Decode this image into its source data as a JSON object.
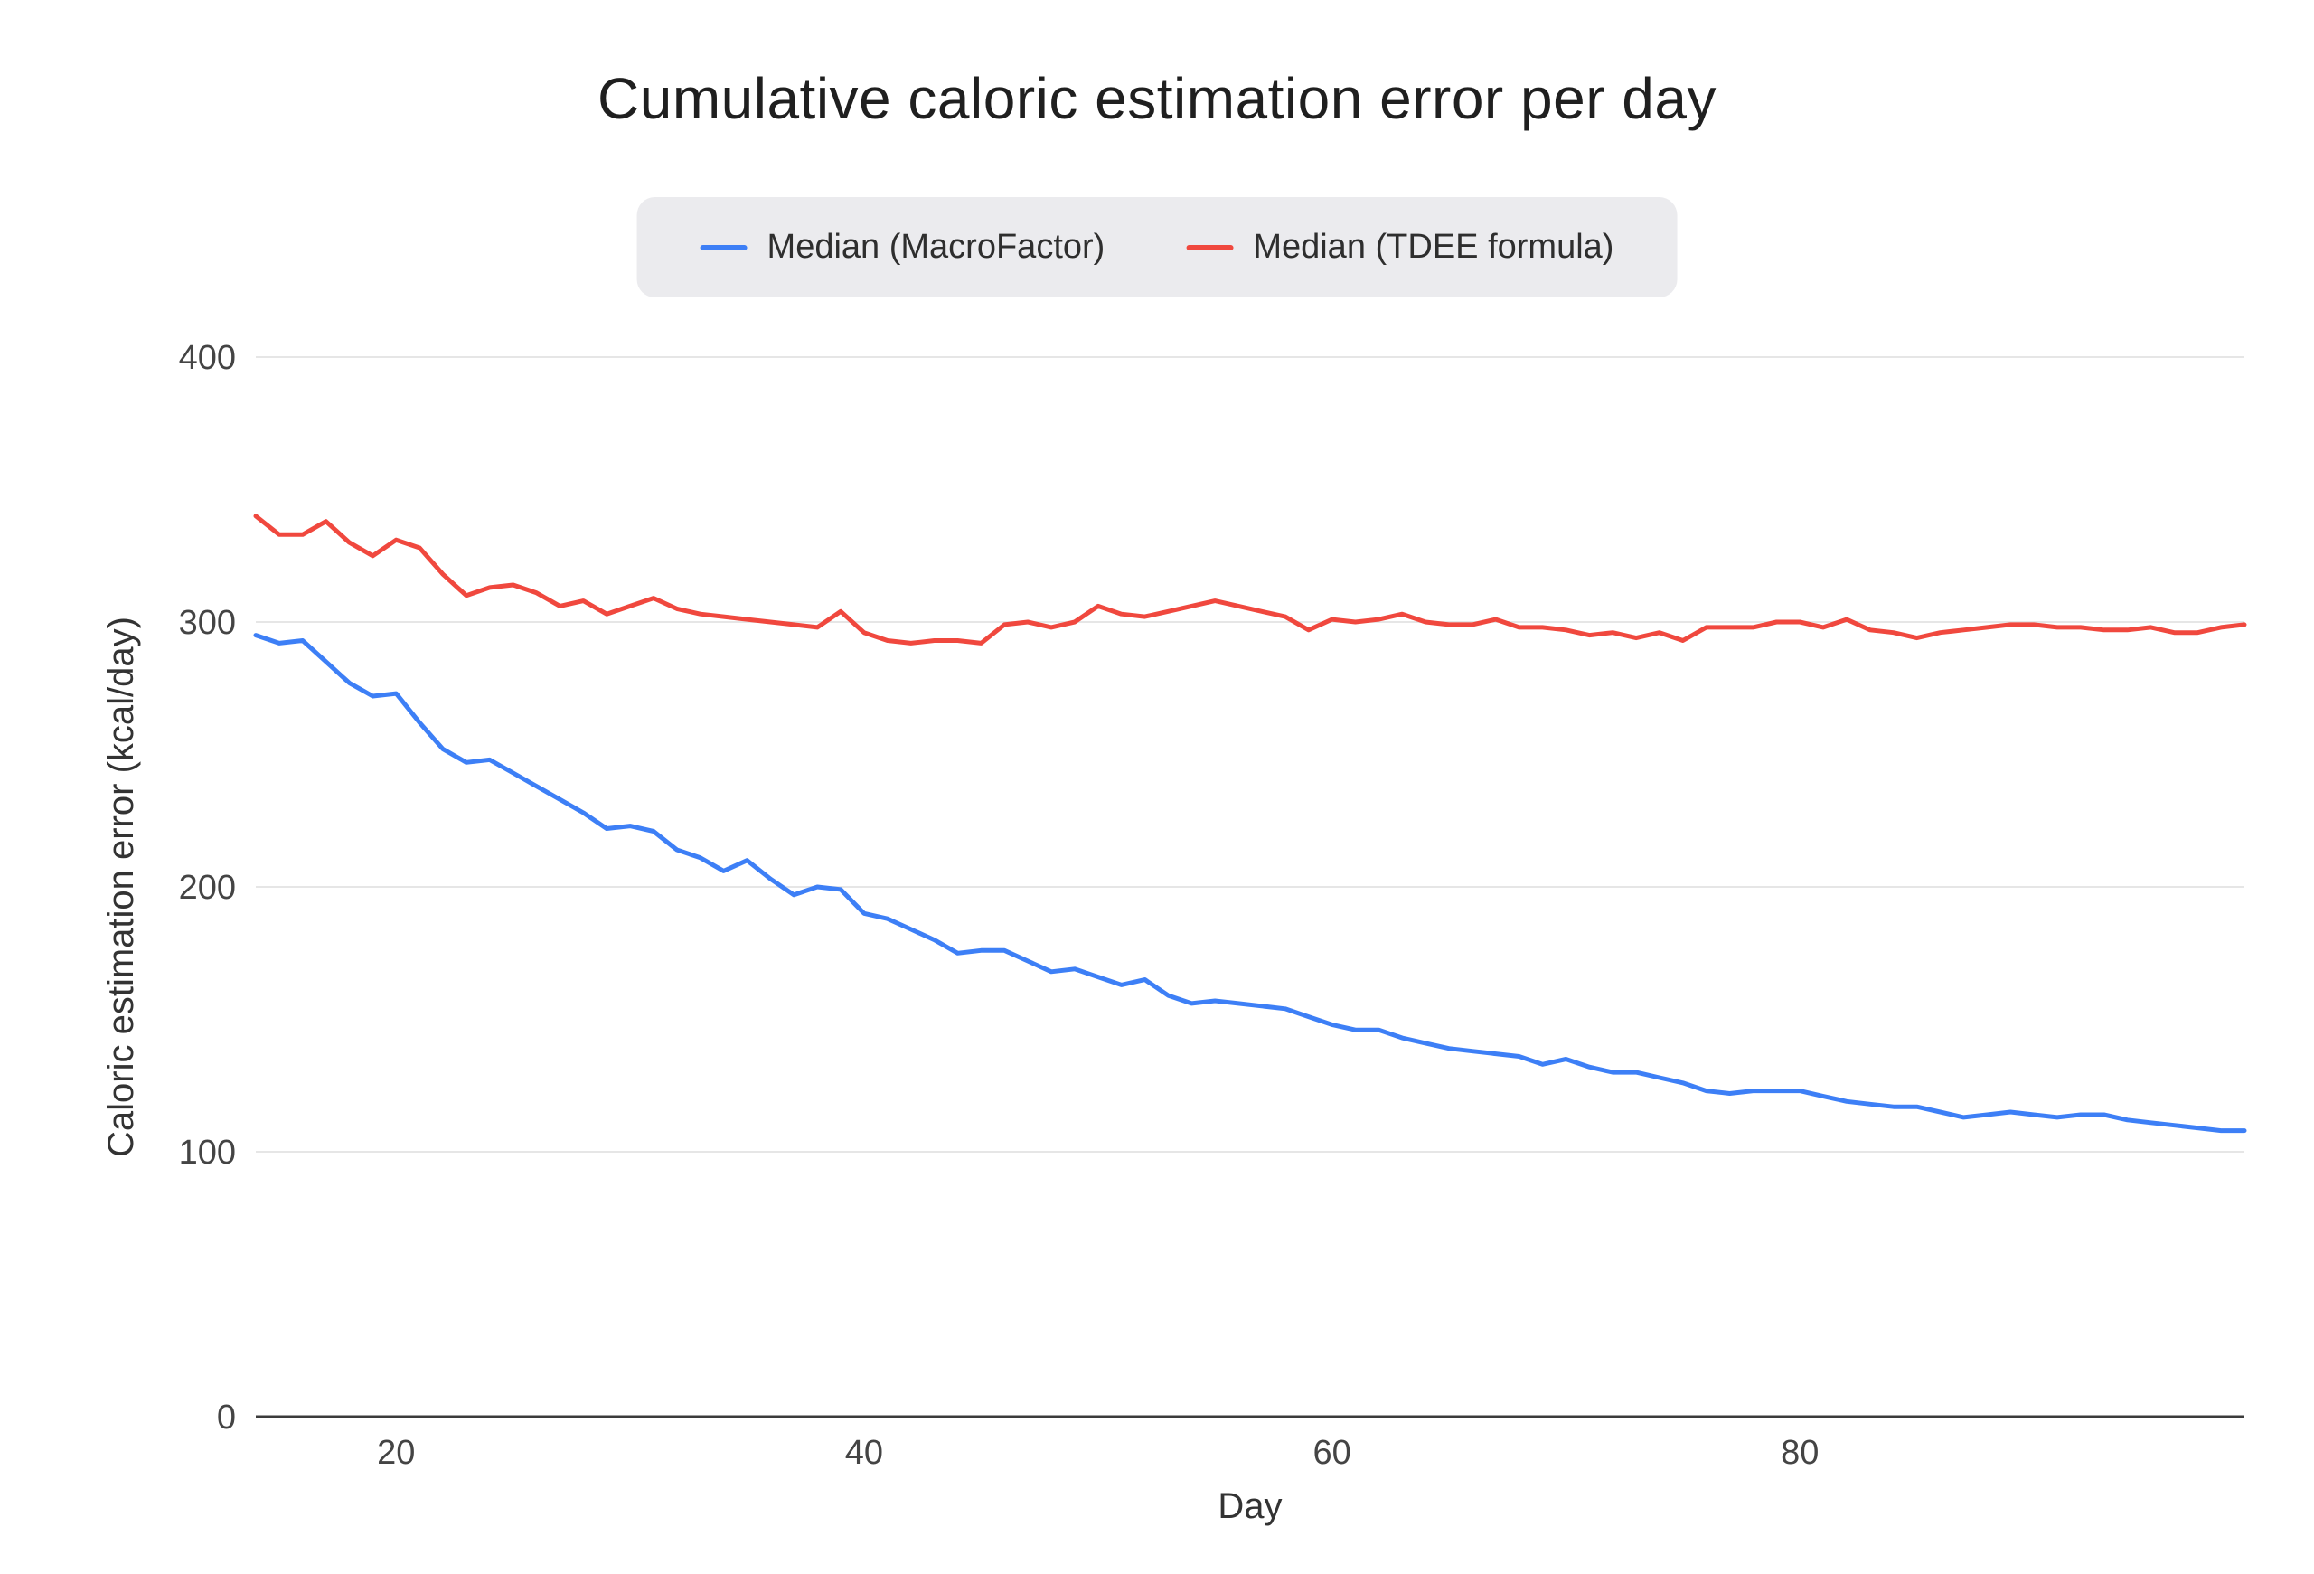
{
  "page": {
    "background": "#ffffff"
  },
  "chart_data": {
    "type": "line",
    "title": "Cumulative caloric estimation error per day",
    "xlabel": "Day",
    "ylabel": "Caloric estimation error (kcal/day)",
    "xlim": [
      14,
      99
    ],
    "ylim": [
      0,
      400
    ],
    "xticks": [
      20,
      40,
      60,
      80
    ],
    "yticks": [
      0,
      100,
      200,
      300,
      400
    ],
    "grid": true,
    "legend_position": "top-center",
    "axis_color": "#3b3b3b",
    "grid_color": "#e6e6e6",
    "tick_color": "#444444",
    "x": [
      14,
      15,
      16,
      17,
      18,
      19,
      20,
      21,
      22,
      23,
      24,
      25,
      26,
      27,
      28,
      29,
      30,
      31,
      32,
      33,
      34,
      35,
      36,
      37,
      38,
      39,
      40,
      41,
      42,
      43,
      44,
      45,
      46,
      47,
      48,
      49,
      50,
      51,
      52,
      53,
      54,
      55,
      56,
      57,
      58,
      59,
      60,
      61,
      62,
      63,
      64,
      65,
      66,
      67,
      68,
      69,
      70,
      71,
      72,
      73,
      74,
      75,
      76,
      77,
      78,
      79,
      80,
      81,
      82,
      83,
      84,
      85,
      86,
      87,
      88,
      89,
      90,
      91,
      92,
      93,
      94,
      95,
      96,
      97,
      98,
      99
    ],
    "series": [
      {
        "name": "Median (MacroFactor)",
        "color": "#3d7ff6",
        "values": [
          295,
          292,
          293,
          285,
          277,
          272,
          273,
          262,
          252,
          247,
          248,
          243,
          238,
          233,
          228,
          222,
          223,
          221,
          214,
          211,
          206,
          210,
          203,
          197,
          200,
          199,
          190,
          188,
          184,
          180,
          175,
          176,
          176,
          172,
          168,
          169,
          166,
          163,
          165,
          159,
          156,
          157,
          156,
          155,
          154,
          151,
          148,
          146,
          146,
          143,
          141,
          139,
          138,
          137,
          136,
          133,
          135,
          132,
          130,
          130,
          128,
          126,
          123,
          122,
          123,
          123,
          123,
          121,
          119,
          118,
          117,
          117,
          115,
          113,
          114,
          115,
          114,
          113,
          114,
          114,
          112,
          111,
          110,
          109,
          108,
          108
        ]
      },
      {
        "name": "Median (TDEE formula)",
        "color": "#f0483e",
        "values": [
          340,
          333,
          333,
          338,
          330,
          325,
          331,
          328,
          318,
          310,
          313,
          314,
          311,
          306,
          308,
          303,
          306,
          309,
          305,
          303,
          302,
          301,
          300,
          299,
          298,
          304,
          296,
          293,
          292,
          293,
          293,
          292,
          299,
          300,
          298,
          300,
          306,
          303,
          302,
          304,
          306,
          308,
          306,
          304,
          302,
          297,
          301,
          300,
          301,
          303,
          300,
          299,
          299,
          301,
          298,
          298,
          297,
          295,
          296,
          294,
          296,
          293,
          298,
          298,
          298,
          300,
          300,
          298,
          301,
          297,
          296,
          294,
          296,
          297,
          298,
          299,
          299,
          298,
          298,
          297,
          297,
          298,
          296,
          296,
          298,
          299
        ]
      }
    ]
  }
}
